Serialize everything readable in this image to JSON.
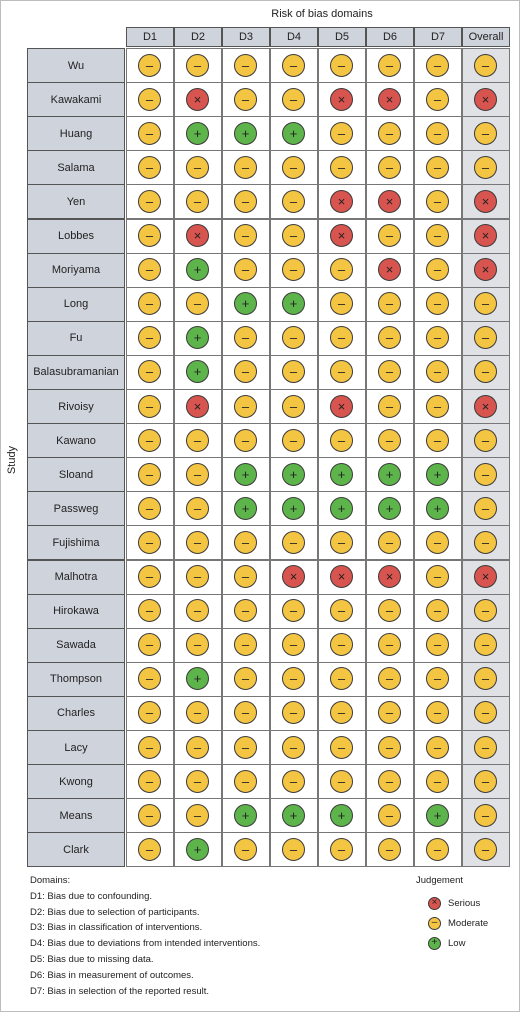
{
  "title": "Risk of bias domains",
  "y_axis_label": "Study",
  "columns": [
    "D1",
    "D2",
    "D3",
    "D4",
    "D5",
    "D6",
    "D7",
    "Overall"
  ],
  "judgement_styles": {
    "serious": {
      "color": "#d8544f",
      "symbol": "×"
    },
    "moderate": {
      "color": "#f4c542",
      "symbol": "–"
    },
    "low": {
      "color": "#5cb44a",
      "symbol": "+"
    }
  },
  "studies": [
    {
      "name": "Wu",
      "ratings": [
        "moderate",
        "moderate",
        "moderate",
        "moderate",
        "moderate",
        "moderate",
        "moderate",
        "moderate"
      ]
    },
    {
      "name": "Kawakami",
      "ratings": [
        "moderate",
        "serious",
        "moderate",
        "moderate",
        "serious",
        "serious",
        "moderate",
        "serious"
      ]
    },
    {
      "name": "Huang",
      "ratings": [
        "moderate",
        "low",
        "low",
        "low",
        "moderate",
        "moderate",
        "moderate",
        "moderate"
      ]
    },
    {
      "name": "Salama",
      "ratings": [
        "moderate",
        "moderate",
        "moderate",
        "moderate",
        "moderate",
        "moderate",
        "moderate",
        "moderate"
      ]
    },
    {
      "name": "Yen",
      "ratings": [
        "moderate",
        "moderate",
        "moderate",
        "moderate",
        "serious",
        "serious",
        "moderate",
        "serious"
      ]
    },
    {
      "name": "Lobbes",
      "ratings": [
        "moderate",
        "serious",
        "moderate",
        "moderate",
        "serious",
        "moderate",
        "moderate",
        "serious"
      ]
    },
    {
      "name": "Moriyama",
      "ratings": [
        "moderate",
        "low",
        "moderate",
        "moderate",
        "moderate",
        "serious",
        "moderate",
        "serious"
      ]
    },
    {
      "name": "Long",
      "ratings": [
        "moderate",
        "moderate",
        "low",
        "low",
        "moderate",
        "moderate",
        "moderate",
        "moderate"
      ]
    },
    {
      "name": "Fu",
      "ratings": [
        "moderate",
        "low",
        "moderate",
        "moderate",
        "moderate",
        "moderate",
        "moderate",
        "moderate"
      ]
    },
    {
      "name": "Balasubramanian",
      "ratings": [
        "moderate",
        "low",
        "moderate",
        "moderate",
        "moderate",
        "moderate",
        "moderate",
        "moderate"
      ]
    },
    {
      "name": "Rivoisy",
      "ratings": [
        "moderate",
        "serious",
        "moderate",
        "moderate",
        "serious",
        "moderate",
        "moderate",
        "serious"
      ]
    },
    {
      "name": "Kawano",
      "ratings": [
        "moderate",
        "moderate",
        "moderate",
        "moderate",
        "moderate",
        "moderate",
        "moderate",
        "moderate"
      ]
    },
    {
      "name": "Sloand",
      "ratings": [
        "moderate",
        "moderate",
        "low",
        "low",
        "low",
        "low",
        "low",
        "moderate"
      ]
    },
    {
      "name": "Passweg",
      "ratings": [
        "moderate",
        "moderate",
        "low",
        "low",
        "low",
        "low",
        "low",
        "moderate"
      ]
    },
    {
      "name": "Fujishima",
      "ratings": [
        "moderate",
        "moderate",
        "moderate",
        "moderate",
        "moderate",
        "moderate",
        "moderate",
        "moderate"
      ]
    },
    {
      "name": "Malhotra",
      "ratings": [
        "moderate",
        "moderate",
        "moderate",
        "serious",
        "serious",
        "serious",
        "moderate",
        "serious"
      ]
    },
    {
      "name": "Hirokawa",
      "ratings": [
        "moderate",
        "moderate",
        "moderate",
        "moderate",
        "moderate",
        "moderate",
        "moderate",
        "moderate"
      ]
    },
    {
      "name": "Sawada",
      "ratings": [
        "moderate",
        "moderate",
        "moderate",
        "moderate",
        "moderate",
        "moderate",
        "moderate",
        "moderate"
      ]
    },
    {
      "name": "Thompson",
      "ratings": [
        "moderate",
        "low",
        "moderate",
        "moderate",
        "moderate",
        "moderate",
        "moderate",
        "moderate"
      ]
    },
    {
      "name": "Charles",
      "ratings": [
        "moderate",
        "moderate",
        "moderate",
        "moderate",
        "moderate",
        "moderate",
        "moderate",
        "moderate"
      ]
    },
    {
      "name": "Lacy",
      "ratings": [
        "moderate",
        "moderate",
        "moderate",
        "moderate",
        "moderate",
        "moderate",
        "moderate",
        "moderate"
      ]
    },
    {
      "name": "Kwong",
      "ratings": [
        "moderate",
        "moderate",
        "moderate",
        "moderate",
        "moderate",
        "moderate",
        "moderate",
        "moderate"
      ]
    },
    {
      "name": "Means",
      "ratings": [
        "moderate",
        "moderate",
        "low",
        "low",
        "low",
        "moderate",
        "low",
        "moderate"
      ]
    },
    {
      "name": "Clark",
      "ratings": [
        "moderate",
        "low",
        "moderate",
        "moderate",
        "moderate",
        "moderate",
        "moderate",
        "moderate"
      ]
    }
  ],
  "legend": {
    "domains_title": "Domains:",
    "domains": [
      "D1: Bias due to confounding.",
      "D2: Bias due to selection of participants.",
      "D3: Bias in classification of interventions.",
      "D4: Bias due to deviations from intended interventions.",
      "D5: Bias due to missing data.",
      "D6: Bias in measurement of outcomes.",
      "D7: Bias in selection of the reported result."
    ],
    "judgement_title": "Judgement",
    "judgements": [
      {
        "key": "serious",
        "label": "Serious"
      },
      {
        "key": "moderate",
        "label": "Moderate"
      },
      {
        "key": "low",
        "label": "Low"
      }
    ]
  }
}
